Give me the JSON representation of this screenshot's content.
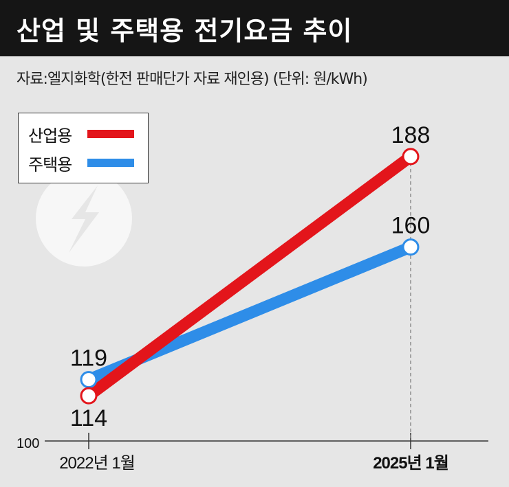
{
  "header": {
    "title": "산업 및 주택용 전기요금 추이",
    "source": "자료:엘지화학(한전 판매단가 자료 재인용) (단위: 원/kWh)"
  },
  "icon": {
    "name": "lightning-bolt-icon"
  },
  "colors": {
    "industrial": "#e3151b",
    "residential": "#2e8de8",
    "icon": "#f7f7f7"
  },
  "chart_data": {
    "type": "line",
    "title": "산업 및 주택용 전기요금 추이",
    "categories": [
      "2022년 1월",
      "2025년 1월"
    ],
    "series": [
      {
        "name": "산업용",
        "values": [
          114,
          188
        ],
        "labels": [
          "114",
          "188"
        ]
      },
      {
        "name": "주택용",
        "values": [
          119,
          160
        ],
        "labels": [
          "119",
          "160"
        ]
      }
    ],
    "y_axis_label": "100",
    "ylim": [
      100,
      195
    ],
    "unit": "원/kWh",
    "grid": false,
    "legend_position": "top-left"
  }
}
